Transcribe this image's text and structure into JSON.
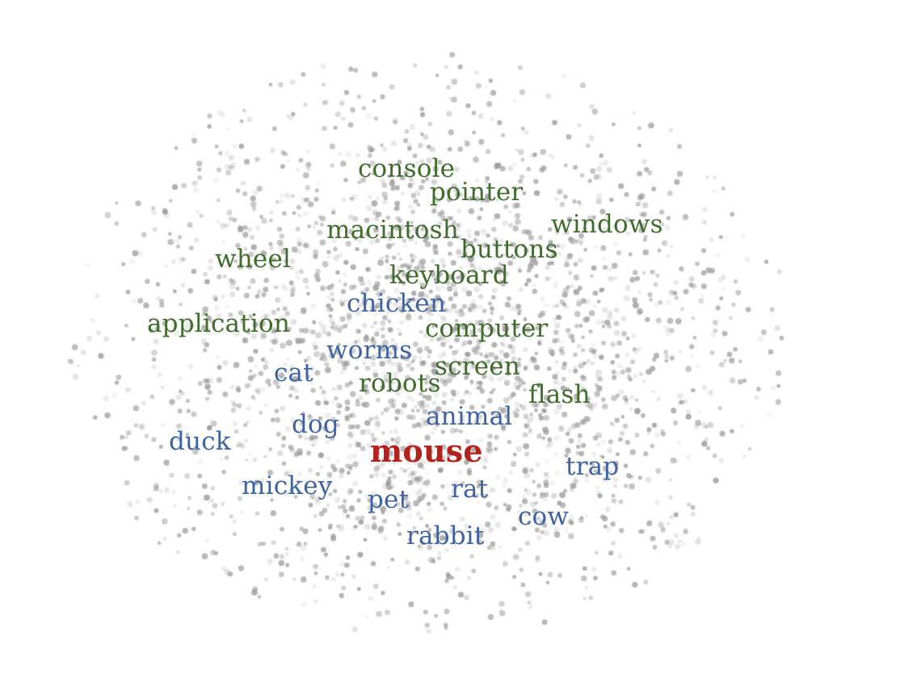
{
  "colors": {
    "computer_sense": "#3f6b2c",
    "animal_sense": "#3e62a2",
    "target": "#b3221c",
    "point_cloud": "#9a9a9a"
  },
  "target_word": "mouse",
  "words": {
    "console": "console",
    "pointer": "pointer",
    "macintosh": "macintosh",
    "windows": "windows",
    "buttons": "buttons",
    "wheel": "wheel",
    "keyboard": "keyboard",
    "chicken": "chicken",
    "application": "application",
    "computer": "computer",
    "worms": "worms",
    "cat": "cat",
    "screen": "screen",
    "robots": "robots",
    "flash": "flash",
    "animal": "animal",
    "dog": "dog",
    "duck": "duck",
    "trap": "trap",
    "mickey": "mickey",
    "pet": "pet",
    "rat": "rat",
    "cow": "cow",
    "rabbit": "rabbit"
  }
}
